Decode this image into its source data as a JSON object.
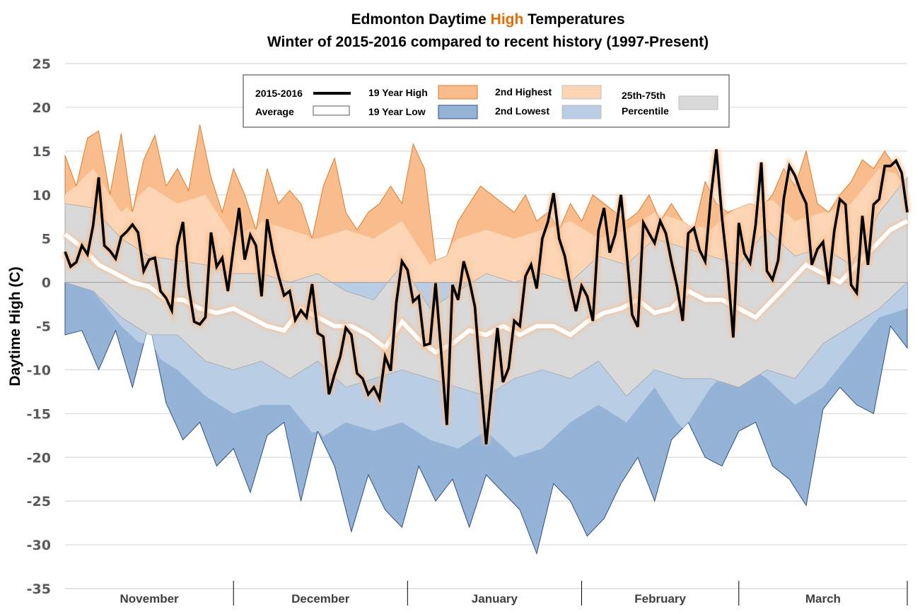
{
  "chart_data": {
    "type": "area",
    "title": [
      "Edmonton Daytime ",
      "High",
      " Temperatures"
    ],
    "title_highlight_color": "#E36C09",
    "subtitle": "Winter of 2015-2016 compared to recent history (1997-Present)",
    "ylabel": "Daytime High (C)",
    "xlabel": "",
    "ylim": [
      -35,
      25
    ],
    "yticks": [
      25,
      20,
      15,
      10,
      5,
      0,
      -5,
      -10,
      -15,
      -20,
      -25,
      -30,
      -35
    ],
    "grid": true,
    "x_range_days": [
      0,
      150
    ],
    "months": [
      {
        "label": "November",
        "start": 0,
        "end": 30
      },
      {
        "label": "December",
        "start": 30,
        "end": 61
      },
      {
        "label": "January",
        "start": 61,
        "end": 92
      },
      {
        "label": "February",
        "start": 92,
        "end": 120
      },
      {
        "label": "March",
        "start": 120,
        "end": 151
      }
    ],
    "legend": {
      "placement": "top-center",
      "entries": [
        {
          "label": "2015-2016",
          "kind": "line",
          "color": "#000000"
        },
        {
          "label": "Average",
          "kind": "line",
          "color": "#FFFFFF"
        },
        {
          "label": "19 Year High",
          "kind": "fill",
          "color": "#F9BC8C"
        },
        {
          "label": "19 Year Low",
          "kind": "fill",
          "color": "#95B3D7"
        },
        {
          "label": "2nd Highest",
          "kind": "fill",
          "color": "#FCD5B5"
        },
        {
          "label": "2nd Lowest",
          "kind": "fill",
          "color": "#B9CDE5"
        },
        {
          "label": "25th-75th Percentile",
          "kind": "fill",
          "color": "#D9D9D9"
        }
      ]
    },
    "colors": {
      "record_high": "#F9BC8C",
      "record_high_edge": "#E07B2A",
      "second_high": "#FCD5B5",
      "percentile": "#D9D9D9",
      "percentile_edge": "#A6A6A6",
      "second_low": "#B9CDE5",
      "record_low": "#95B3D7",
      "record_low_edge": "#2F4F7F",
      "current": "#000000",
      "average": "#FFFFFF",
      "glow": "#F9BC8C"
    },
    "series": [
      {
        "name": "19 Year High",
        "x": [
          0,
          2,
          4,
          6,
          8,
          10,
          12,
          14,
          16,
          18,
          20,
          22,
          24,
          26,
          28,
          30,
          32,
          34,
          36,
          38,
          40,
          42,
          44,
          46,
          48,
          50,
          52,
          54,
          56,
          58,
          60,
          62,
          64,
          66,
          68,
          70,
          72,
          74,
          76,
          78,
          80,
          82,
          84,
          86,
          88,
          90,
          92,
          94,
          96,
          98,
          100,
          102,
          104,
          106,
          108,
          110,
          112,
          114,
          116,
          118,
          120,
          122,
          124,
          126,
          128,
          130,
          132,
          134,
          136,
          138,
          140,
          142,
          144,
          146,
          148,
          150
        ],
        "values": [
          14.5,
          11,
          16.5,
          17.3,
          10,
          17,
          8,
          14,
          16.8,
          11,
          13,
          10.5,
          18,
          12,
          8,
          13,
          10,
          6,
          13,
          9,
          10.5,
          9,
          5,
          11,
          14.2,
          8,
          6,
          8,
          9,
          11,
          9,
          15.8,
          13,
          2.5,
          3,
          7,
          9,
          11,
          10,
          9,
          8,
          10,
          7,
          8,
          6,
          9,
          7,
          10,
          9,
          8,
          7,
          8,
          10,
          7,
          9,
          7,
          6,
          11.5,
          9,
          8,
          8.5,
          9,
          8.5,
          10,
          13,
          11,
          15,
          9,
          8,
          10,
          11.5,
          14,
          13,
          15,
          13,
          10
        ],
        "note": "approximate"
      },
      {
        "name": "2nd Highest",
        "x": [
          0,
          5,
          10,
          15,
          20,
          25,
          30,
          35,
          40,
          45,
          50,
          55,
          60,
          65,
          70,
          75,
          80,
          85,
          90,
          95,
          100,
          105,
          110,
          115,
          120,
          125,
          130,
          135,
          140,
          145,
          150
        ],
        "values": [
          10,
          13,
          8,
          11,
          9,
          10,
          5,
          7,
          6,
          5,
          6,
          5,
          7,
          2,
          5,
          6,
          5,
          6,
          7,
          5,
          6,
          8,
          7,
          6,
          9,
          10,
          7,
          8,
          9,
          13,
          12
        ]
      },
      {
        "name": "75th Percentile",
        "x": [
          0,
          5,
          10,
          15,
          20,
          25,
          30,
          35,
          40,
          45,
          50,
          55,
          60,
          65,
          70,
          75,
          80,
          85,
          90,
          95,
          100,
          105,
          110,
          115,
          120,
          125,
          130,
          135,
          140,
          145,
          150
        ],
        "values": [
          9,
          8.5,
          5,
          3,
          2.5,
          2,
          1,
          1,
          0,
          1,
          -1,
          -2,
          2,
          -3,
          -1,
          1,
          0,
          1,
          0,
          3,
          2,
          5,
          4,
          3,
          2,
          6,
          3,
          4,
          2,
          8,
          12
        ]
      },
      {
        "name": "Average",
        "x": [
          0,
          3,
          6,
          9,
          12,
          15,
          18,
          21,
          24,
          27,
          30,
          33,
          36,
          39,
          42,
          45,
          48,
          51,
          54,
          57,
          60,
          63,
          66,
          69,
          72,
          75,
          78,
          81,
          84,
          87,
          90,
          93,
          96,
          99,
          102,
          105,
          108,
          111,
          114,
          117,
          120,
          123,
          126,
          129,
          132,
          135,
          138,
          141,
          144,
          147,
          150
        ],
        "values": [
          5.5,
          4,
          2,
          1,
          0,
          -0.5,
          -2,
          -2,
          -3,
          -3.5,
          -3,
          -4,
          -5,
          -5.5,
          -3,
          -4,
          -5,
          -5,
          -6,
          -7.5,
          -4.5,
          -6.5,
          -8,
          -7,
          -5.5,
          -6,
          -5,
          -6,
          -5,
          -5,
          -6,
          -4.5,
          -3.5,
          -3,
          -2,
          -3.5,
          -3,
          -1,
          -2,
          -2,
          -3,
          -4,
          -2,
          0,
          2,
          1,
          0,
          2,
          4,
          6,
          7
        ]
      },
      {
        "name": "25th Percentile",
        "x": [
          0,
          5,
          10,
          15,
          20,
          25,
          30,
          35,
          40,
          45,
          50,
          55,
          60,
          65,
          70,
          75,
          80,
          85,
          90,
          95,
          100,
          105,
          110,
          115,
          120,
          125,
          130,
          135,
          140,
          145,
          150
        ],
        "values": [
          0,
          -1,
          -4,
          -6,
          -6,
          -9,
          -10,
          -9,
          -11,
          -9,
          -12,
          -11,
          -10,
          -11,
          -12,
          -13,
          -11,
          -10,
          -11,
          -9,
          -13,
          -10,
          -11,
          -11,
          -12,
          -10,
          -11,
          -7,
          -5,
          -3,
          0
        ]
      },
      {
        "name": "2nd Lowest",
        "x": [
          0,
          5,
          10,
          15,
          20,
          25,
          30,
          35,
          40,
          45,
          50,
          55,
          60,
          65,
          70,
          75,
          80,
          85,
          90,
          95,
          100,
          105,
          110,
          115,
          120,
          125,
          130,
          135,
          140,
          145,
          150
        ],
        "values": [
          0,
          -1,
          -5,
          -8,
          -10,
          -13,
          -15,
          -14,
          -14,
          -18,
          -16,
          -17,
          -16,
          -18,
          -19,
          -17,
          -20,
          -19,
          -16,
          -14,
          -16,
          -12,
          -17,
          -12,
          -9,
          -11,
          -14,
          -12,
          -8,
          -4,
          -3
        ]
      },
      {
        "name": "19 Year Low",
        "x": [
          0,
          3,
          6,
          9,
          12,
          15,
          18,
          21,
          24,
          27,
          30,
          33,
          36,
          39,
          42,
          45,
          48,
          51,
          54,
          57,
          60,
          63,
          66,
          69,
          72,
          75,
          78,
          81,
          84,
          87,
          90,
          93,
          96,
          99,
          102,
          105,
          108,
          111,
          114,
          117,
          120,
          123,
          126,
          129,
          132,
          135,
          138,
          141,
          144,
          147,
          150
        ],
        "values": [
          -6,
          -5.5,
          -10,
          -5.5,
          -12,
          -4.5,
          -13.8,
          -18,
          -16,
          -21,
          -19,
          -24,
          -17.5,
          -16,
          -25,
          -17,
          -21,
          -28.5,
          -22,
          -26,
          -28,
          -21,
          -25,
          -22.5,
          -28,
          -22,
          -24,
          -26,
          -31,
          -23,
          -25,
          -29,
          -27,
          -23,
          -20,
          -25,
          -18,
          -16,
          -20,
          -21,
          -17,
          -16,
          -21,
          -22.5,
          -25.5,
          -14.5,
          -12,
          -14,
          -15,
          -5,
          -7.5
        ]
      },
      {
        "name": "2015-2016",
        "x": [
          0,
          1,
          2,
          3,
          4,
          5,
          6,
          7,
          8,
          9,
          10,
          11,
          12,
          13,
          14,
          15,
          16,
          17,
          18,
          19,
          20,
          21,
          22,
          23,
          24,
          25,
          26,
          27,
          28,
          29,
          30,
          31,
          32,
          33,
          34,
          35,
          36,
          37,
          38,
          39,
          40,
          41,
          42,
          43,
          44,
          45,
          46,
          47,
          48,
          49,
          50,
          51,
          52,
          53,
          54,
          55,
          56,
          57,
          58,
          59,
          60,
          61,
          62,
          63,
          64,
          65,
          66,
          67,
          68,
          69,
          70,
          71,
          72,
          73,
          74,
          75,
          76,
          77,
          78,
          79,
          80,
          81,
          82,
          83,
          84,
          85,
          86,
          87,
          88,
          89,
          90,
          91,
          92,
          93,
          94,
          95,
          96,
          97,
          98,
          99,
          100,
          101,
          102,
          103,
          104,
          105,
          106,
          107,
          108,
          109,
          110,
          111,
          112,
          113,
          114,
          115,
          116,
          117,
          118,
          119,
          120,
          121,
          122,
          123,
          124,
          125,
          126,
          127,
          128,
          129,
          130,
          131,
          132,
          133,
          134,
          135,
          136,
          137,
          138,
          139,
          140,
          141,
          142,
          143,
          144,
          145,
          146,
          147,
          148,
          149,
          150
        ],
        "values": [
          3.5,
          1.8,
          2.3,
          4.2,
          3.2,
          6.5,
          12,
          4.2,
          3.6,
          2.7,
          5.2,
          5.8,
          6.6,
          5.7,
          1.3,
          2.6,
          2.8,
          -1,
          -1.8,
          -3.2,
          4.2,
          6.9,
          -0.5,
          -4.5,
          -4.8,
          -4.0,
          5.7,
          1.8,
          2.8,
          -1,
          4,
          8.5,
          2.6,
          5.4,
          4.2,
          -1.6,
          7.2,
          3.5,
          0.8,
          -1.5,
          -1,
          -4.3,
          -3.2,
          -4,
          -0.2,
          -5.8,
          -6.2,
          -12.8,
          -10.5,
          -8.5,
          -5.2,
          -6,
          -10.4,
          -11,
          -12.8,
          -12,
          -13.3,
          -8.5,
          -10.1,
          -2.3,
          2.4,
          1.4,
          -2.2,
          -1.6,
          -7.2,
          -7.0,
          -0.1,
          -8.1,
          -16.3,
          -0.3,
          -2,
          2.4,
          0.2,
          -2.8,
          -11,
          -18.5,
          -12,
          -5.2,
          -11.4,
          -9.8,
          -4.4,
          -5,
          0.7,
          2,
          -0.7,
          5,
          6.9,
          10.2,
          5,
          3,
          -0.5,
          -3.3,
          -0.4,
          -1.6,
          -4.4,
          5.9,
          8.5,
          3.4,
          5.5,
          10,
          3.5,
          -3.7,
          -5.1,
          6.8,
          5.6,
          4.5,
          7,
          5.6,
          2.4,
          -0.5,
          -4.4,
          5.6,
          6.2,
          3.7,
          2.4,
          9.7,
          15.2,
          7.4,
          1.6,
          -6.3,
          6.8,
          3.3,
          2.2,
          6.6,
          13.7,
          1.3,
          0.3,
          2.5,
          9.5,
          13.3,
          12.2,
          10.4,
          9,
          2,
          3.8,
          4.6,
          -0.2,
          5.9,
          9.5,
          8.9,
          -0.3,
          -1.2,
          7.6,
          2,
          8.9,
          9.5,
          13.3,
          13.3,
          13.9,
          12.5,
          8
        ]
      }
    ]
  }
}
